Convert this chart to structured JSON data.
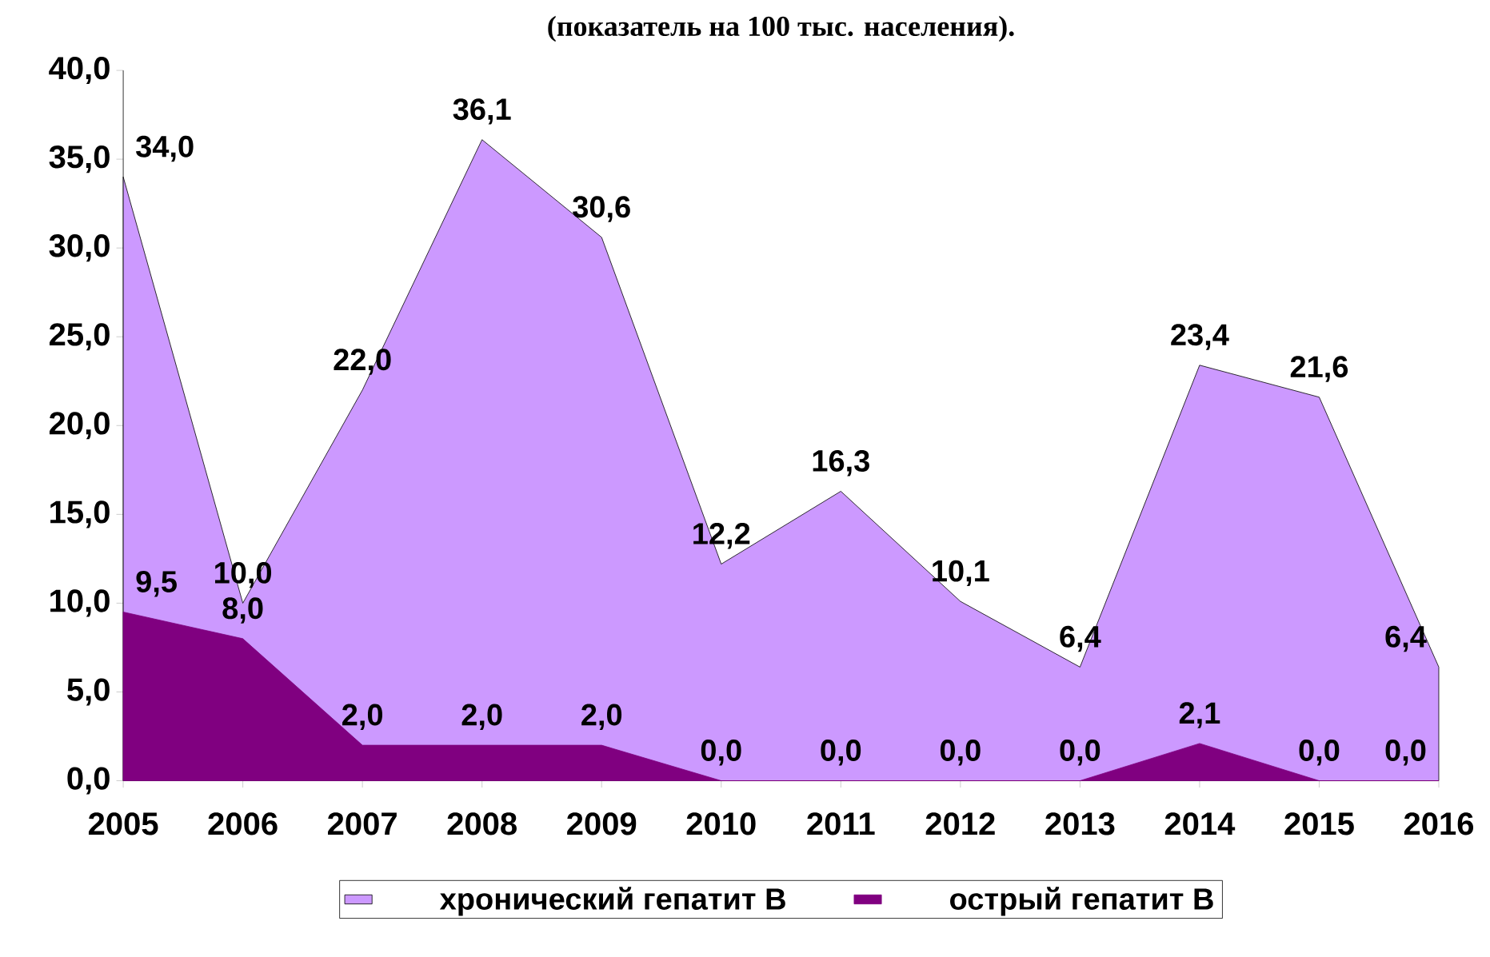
{
  "chart_data": {
    "type": "area",
    "title": "(показатель на 100 тыс. населения).",
    "categories": [
      "2005",
      "2006",
      "2007",
      "2008",
      "2009",
      "2010",
      "2011",
      "2012",
      "2013",
      "2014",
      "2015",
      "2016"
    ],
    "series": [
      {
        "name": "хронический гепатит В",
        "color": "#cc99ff",
        "values": [
          34.0,
          10.0,
          22.0,
          36.1,
          30.6,
          12.2,
          16.3,
          10.1,
          6.4,
          23.4,
          21.6,
          6.4
        ],
        "value_labels": [
          "34,0",
          "10,0",
          "22,0",
          "36,1",
          "30,6",
          "12,2",
          "16,3",
          "10,1",
          "6,4",
          "23,4",
          "21,6",
          "6,4"
        ]
      },
      {
        "name": "острый гепатит В",
        "color": "#800080",
        "values": [
          9.5,
          8.0,
          2.0,
          2.0,
          2.0,
          0.0,
          0.0,
          0.0,
          0.0,
          2.1,
          0.0,
          0.0
        ],
        "value_labels": [
          "9,5",
          "8,0",
          "2,0",
          "2,0",
          "2,0",
          "0,0",
          "0,0",
          "0,0",
          "0,0",
          "2,1",
          "0,0",
          "0,0"
        ]
      }
    ],
    "ylim": [
      0,
      40
    ],
    "yticks": [
      {
        "value": 0,
        "label": "0,0"
      },
      {
        "value": 5,
        "label": "5,0"
      },
      {
        "value": 10,
        "label": "10,0"
      },
      {
        "value": 15,
        "label": "15,0"
      },
      {
        "value": 20,
        "label": "20,0"
      },
      {
        "value": 25,
        "label": "25,0"
      },
      {
        "value": 30,
        "label": "30,0"
      },
      {
        "value": 35,
        "label": "35,0"
      },
      {
        "value": 40,
        "label": "40,0"
      }
    ],
    "legend": "bottom",
    "grid": false
  }
}
